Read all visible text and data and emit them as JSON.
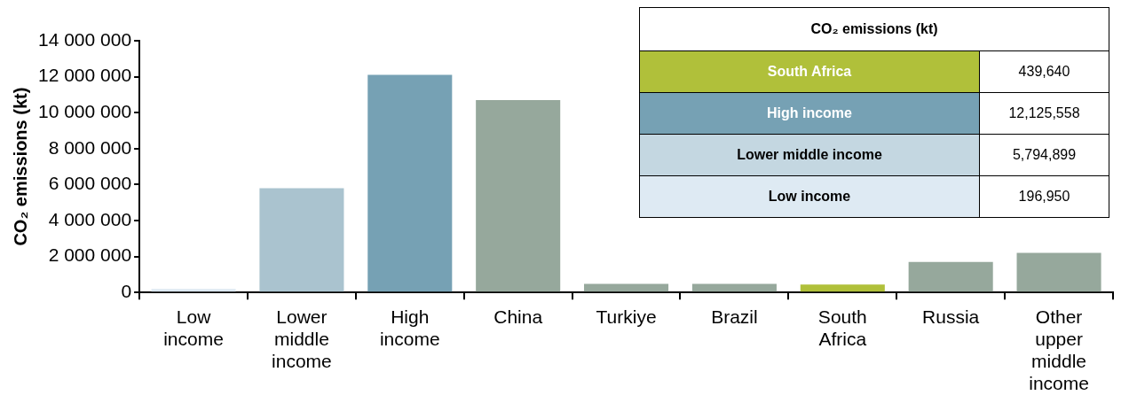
{
  "chart_data": [
    {
      "type": "bar",
      "ylabel": "CO₂ emissions (kt)",
      "categories": [
        "Low income",
        "Lower middle income",
        "High income",
        "China",
        "Turkiye",
        "Brazil",
        "South Africa",
        "Russia",
        "Other upper middle income"
      ],
      "values": [
        200000,
        5800000,
        12100000,
        10700000,
        480000,
        480000,
        440000,
        1700000,
        2200000
      ],
      "colors": [
        "#dde9f2",
        "#aac3cf",
        "#76a1b4",
        "#96a89c",
        "#96a89c",
        "#96a89c",
        "#b0c03a",
        "#96a89c",
        "#96a89c"
      ],
      "ylim": [
        0,
        14000000
      ],
      "yticks": [
        {
          "value": 0,
          "label": "0"
        },
        {
          "value": 2000000,
          "label": "2 000 000"
        },
        {
          "value": 4000000,
          "label": "4 000 000"
        },
        {
          "value": 6000000,
          "label": "6 000 000"
        },
        {
          "value": 8000000,
          "label": "8 000 000"
        },
        {
          "value": 10000000,
          "label": "10 000 000"
        },
        {
          "value": 12000000,
          "label": "12 000 000"
        },
        {
          "value": 14000000,
          "label": "14 000 000"
        }
      ]
    },
    {
      "type": "other",
      "title": "CO₂ emissions (kt)",
      "annotations": [
        "South Africa",
        "439,640",
        "High income",
        "12,125,558",
        "Lower middle income",
        "5,794,899",
        "Low income",
        "196,950"
      ],
      "colors": [
        "#b0c03a",
        "#76a1b4",
        "#c4d7e1",
        "#deeaf3"
      ]
    }
  ]
}
